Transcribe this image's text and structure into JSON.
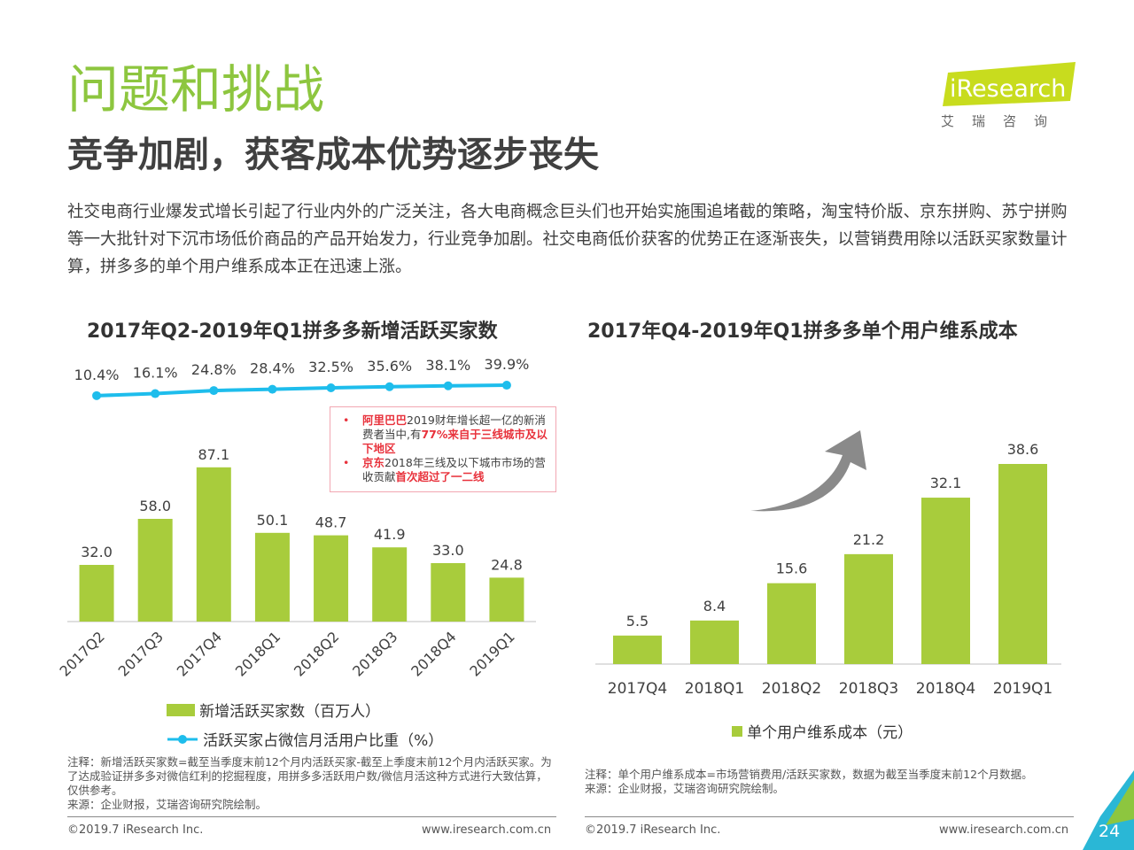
{
  "header": {
    "title": "问题和挑战",
    "subtitle": "竞争加剧，获客成本优势逐步丧失",
    "intro": "社交电商行业爆发式增长引起了行业内外的广泛关注，各大电商概念巨头们也开始实施围追堵截的策略，淘宝特价版、京东拼购、苏宁拼购等一大批针对下沉市场低价商品的产品开始发力，行业竞争加剧。社交电商低价获客的优势正在逐渐丧失，以营销费用除以活跃买家数量计算，拼多多的单个用户维系成本正在迅速上涨。"
  },
  "logo": {
    "brand": "iResearch",
    "sub": "艾瑞咨询",
    "color": "#c8dc1e"
  },
  "chart_data": [
    {
      "type": "bar",
      "title": "2017年Q2-2019年Q1拼多多新增活跃买家数",
      "categories": [
        "2017Q2",
        "2017Q3",
        "2017Q4",
        "2018Q1",
        "2018Q2",
        "2018Q3",
        "2018Q4",
        "2019Q1"
      ],
      "series": [
        {
          "name": "新增活跃买家数（百万人）",
          "type": "bar",
          "color": "#a8cc3c",
          "values": [
            32.0,
            58.0,
            87.1,
            50.1,
            48.7,
            41.9,
            33.0,
            24.8
          ],
          "labels": [
            "32.0",
            "58.0",
            "87.1",
            "50.1",
            "48.7",
            "41.9",
            "33.0",
            "24.8"
          ]
        },
        {
          "name": "活跃买家占微信月活用户比重（%）",
          "type": "line",
          "color": "#1ebdec",
          "values": [
            10.4,
            16.1,
            24.8,
            28.4,
            32.5,
            35.6,
            38.1,
            39.9
          ],
          "labels": [
            "10.4%",
            "16.1%",
            "24.8%",
            "28.4%",
            "32.5%",
            "35.6%",
            "38.1%",
            "39.9%"
          ]
        }
      ],
      "ylim": [
        0,
        100
      ],
      "legend": "bottom",
      "callout": {
        "items": [
          {
            "parts": [
              {
                "text": "阿里巴巴",
                "hl": true
              },
              {
                "text": "2019财年增长超一亿的新消费者当中,有",
                "hl": false
              },
              {
                "text": "77%来自于三线城市及以下地区",
                "hl": true
              }
            ]
          },
          {
            "parts": [
              {
                "text": "京东",
                "hl": true
              },
              {
                "text": "2018年三线及以下城市市场的营收贡献",
                "hl": false
              },
              {
                "text": "首次超过了一二线",
                "hl": true
              }
            ]
          }
        ]
      }
    },
    {
      "type": "bar",
      "title": "2017年Q4-2019年Q1拼多多单个用户维系成本",
      "categories": [
        "2017Q4",
        "2018Q1",
        "2018Q2",
        "2018Q3",
        "2018Q4",
        "2019Q1"
      ],
      "series": [
        {
          "name": "单个用户维系成本（元）",
          "color": "#a8cc3c",
          "values": [
            5.5,
            8.4,
            15.6,
            21.2,
            32.1,
            38.6
          ],
          "labels": [
            "5.5",
            "8.4",
            "15.6",
            "21.2",
            "32.1",
            "38.6"
          ]
        }
      ],
      "ylim": [
        0,
        40
      ],
      "legend": "bottom"
    }
  ],
  "notes": {
    "left": {
      "note": "注释：新增活跃买家数=截至当季度末前12个月内活跃买家-截至上季度末前12个月内活跃买家。为了达成验证拼多多对微信红利的挖掘程度，用拼多多活跃用户数/微信月活这种方式进行大致估算，仅供参考。",
      "source": "来源：企业财报，艾瑞咨询研究院绘制。"
    },
    "right": {
      "note": "注释：单个用户维系成本=市场营销费用/活跃买家数，数据为截至当季度末前12个月数据。",
      "source": "来源：企业财报，艾瑞咨询研究院绘制。"
    }
  },
  "footer": {
    "copyright": "©2019.7 iResearch Inc.",
    "url": "www.iresearch.com.cn",
    "page": "24",
    "accent": "#2ab7d6"
  }
}
